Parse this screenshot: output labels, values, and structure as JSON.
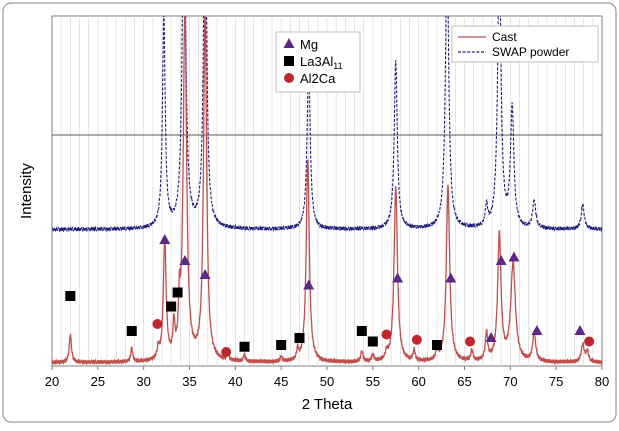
{
  "chart_data": {
    "type": "line",
    "xlabel": "2 Theta",
    "ylabel": "Intensity",
    "xlim": [
      20,
      80
    ],
    "xticks": [
      20,
      25,
      30,
      35,
      40,
      45,
      50,
      55,
      60,
      65,
      70,
      75,
      80
    ],
    "ylim": [
      0,
      100
    ],
    "grid": "vertical",
    "series": [
      {
        "name": "Cast",
        "style": "solid",
        "color": "#c0504d",
        "baseline": 1,
        "peaks": [
          [
            22.0,
            8,
            0.14
          ],
          [
            28.7,
            4,
            0.12
          ],
          [
            31.6,
            3,
            0.14
          ],
          [
            32.3,
            34,
            0.18
          ],
          [
            33.3,
            9,
            0.12
          ],
          [
            33.9,
            13,
            0.12
          ],
          [
            34.5,
            100,
            0.22
          ],
          [
            36.7,
            100,
            0.2
          ],
          [
            39.2,
            2,
            0.12
          ],
          [
            41.0,
            2,
            0.12
          ],
          [
            45.0,
            1.5,
            0.12
          ],
          [
            46.8,
            3,
            0.12
          ],
          [
            47.9,
            58,
            0.2
          ],
          [
            53.8,
            3,
            0.14
          ],
          [
            55.0,
            2,
            0.14
          ],
          [
            56.5,
            2,
            0.14
          ],
          [
            57.5,
            50,
            0.22
          ],
          [
            59.5,
            3,
            0.14
          ],
          [
            62.0,
            3,
            0.14
          ],
          [
            63.2,
            50,
            0.22
          ],
          [
            65.8,
            3,
            0.14
          ],
          [
            67.4,
            8,
            0.15
          ],
          [
            68.8,
            36,
            0.22
          ],
          [
            70.3,
            28,
            0.3
          ],
          [
            72.6,
            8,
            0.2
          ],
          [
            77.9,
            5,
            0.2
          ],
          [
            78.4,
            3,
            0.16
          ]
        ]
      },
      {
        "name": "SWAP powder",
        "style": "dashed",
        "color": "#1f1f7a",
        "baseline": 39,
        "peaks": [
          [
            32.2,
            60,
            0.18
          ],
          [
            34.4,
            100,
            0.22
          ],
          [
            36.7,
            100,
            0.2
          ],
          [
            48.0,
            48,
            0.2
          ],
          [
            57.5,
            48,
            0.2
          ],
          [
            63.1,
            78,
            0.22
          ],
          [
            67.4,
            6,
            0.15
          ],
          [
            68.8,
            78,
            0.22
          ],
          [
            70.2,
            34,
            0.22
          ],
          [
            72.6,
            8,
            0.2
          ],
          [
            77.9,
            7,
            0.2
          ]
        ]
      }
    ],
    "legend_series_position": "top-right",
    "legend_phases_position": "top-center",
    "phases": [
      {
        "name_base": "Mg",
        "name_sub": "",
        "marker": "triangle",
        "color": "#5b2a86",
        "points": [
          [
            32.3,
            36
          ],
          [
            34.5,
            30
          ],
          [
            36.7,
            26
          ],
          [
            48.0,
            23
          ],
          [
            57.7,
            25
          ],
          [
            63.5,
            25
          ],
          [
            67.9,
            8
          ],
          [
            69.0,
            30
          ],
          [
            70.4,
            31
          ],
          [
            72.9,
            10
          ],
          [
            77.6,
            10
          ]
        ]
      },
      {
        "name_base": "La3Al",
        "name_sub": "11",
        "marker": "square",
        "color": "#000000",
        "points": [
          [
            22.0,
            20
          ],
          [
            28.7,
            10
          ],
          [
            33.0,
            17
          ],
          [
            33.7,
            21
          ],
          [
            41.0,
            5.5
          ],
          [
            45.0,
            6
          ],
          [
            47.0,
            8
          ],
          [
            53.8,
            10
          ],
          [
            55.0,
            7
          ],
          [
            62.0,
            6
          ]
        ]
      },
      {
        "name_base": "Al2Ca",
        "name_sub": "",
        "marker": "circle",
        "color": "#c0272d",
        "points": [
          [
            31.5,
            12
          ],
          [
            39.0,
            4
          ],
          [
            56.5,
            9
          ],
          [
            59.8,
            7.5
          ],
          [
            65.6,
            7
          ],
          [
            78.6,
            7
          ]
        ]
      }
    ]
  }
}
